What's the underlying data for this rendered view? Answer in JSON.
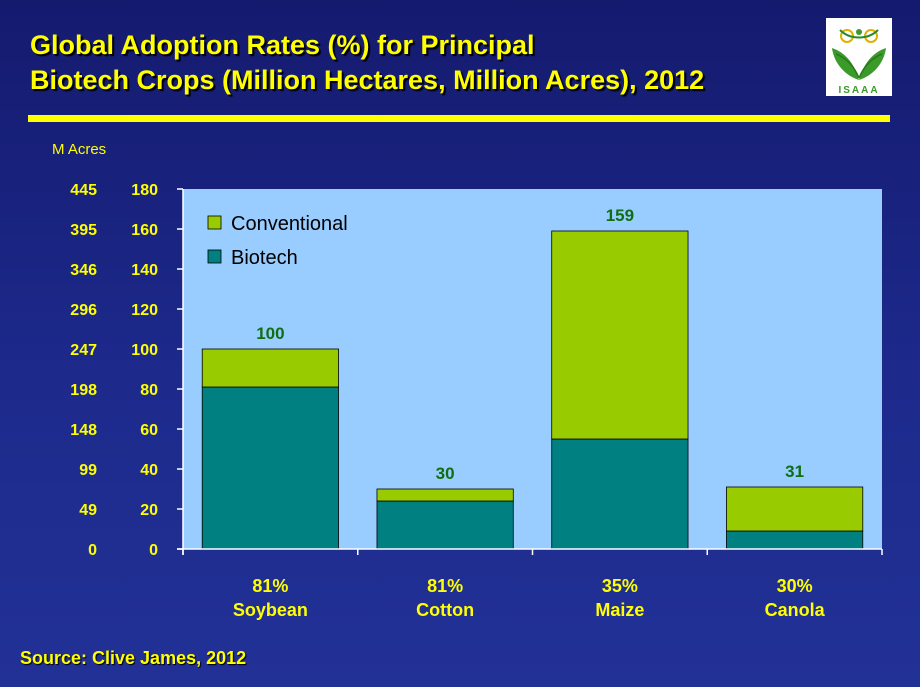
{
  "title": {
    "line1": "Global Adoption Rates (%) for Principal",
    "line2": "Biotech Crops (Million Hectares, Million Acres), 2012"
  },
  "logo": {
    "text": "ISAAA",
    "icon": "isaaa-leaf-logo"
  },
  "source": "Source: Clive James, 2012",
  "colors": {
    "conventional": "#99cc00",
    "biotech": "#008080",
    "plot_bg": "#99ccff",
    "accent": "#ffff00",
    "data_label": "#0f6f10"
  },
  "chart_data": {
    "type": "bar",
    "stacked": true,
    "categories": [
      "Soybean",
      "Cotton",
      "Maize",
      "Canola"
    ],
    "category_percent": [
      "81%",
      "81%",
      "35%",
      "30%"
    ],
    "series": [
      {
        "name": "Biotech",
        "values": [
          81,
          24,
          55,
          9
        ]
      },
      {
        "name": "Conventional",
        "values": [
          19,
          6,
          104,
          22
        ]
      }
    ],
    "totals": [
      100,
      30,
      159,
      31
    ],
    "total_labels": [
      "100",
      "30",
      "159",
      "31"
    ],
    "ylim": [
      0,
      180
    ],
    "yticks": [
      0,
      20,
      40,
      60,
      80,
      100,
      120,
      140,
      160,
      180
    ],
    "secondary_axis_label": "M Acres",
    "secondary_ticks": [
      "0",
      "49",
      "99",
      "148",
      "198",
      "247",
      "296",
      "346",
      "395",
      "445"
    ],
    "legend": [
      "Conventional",
      "Biotech"
    ],
    "legend_position": "top-left"
  }
}
